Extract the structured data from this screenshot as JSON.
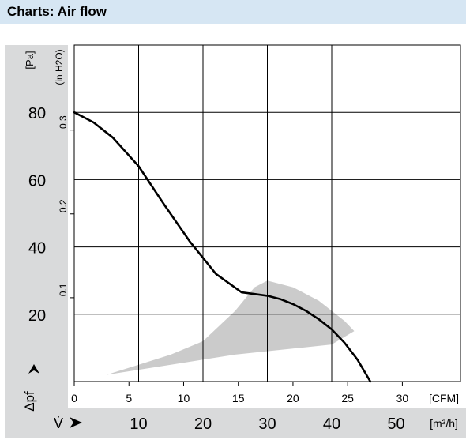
{
  "header": {
    "title": "Charts: Air flow"
  },
  "chart_data": {
    "type": "line",
    "title": "",
    "y_unit_pa": "[Pa]",
    "y_unit_inh2o": "(in H2O)",
    "y_symbol": "Δpf",
    "x_symbol": "V̇",
    "x_unit_cfm": "[CFM]",
    "x_unit_m3h": "[m³/h]",
    "yticks_pa": [
      "20",
      "40",
      "60",
      "80"
    ],
    "yticks_pa_values": [
      20,
      40,
      60,
      80
    ],
    "yticks_inh2o": [
      "0.1",
      "0.2",
      "0.3"
    ],
    "yticks_inh2o_values": [
      0.1,
      0.2,
      0.3
    ],
    "xticks_cfm": [
      "0",
      "5",
      "10",
      "15",
      "20",
      "25",
      "30"
    ],
    "xticks_cfm_values": [
      0,
      5,
      10,
      15,
      20,
      25,
      30
    ],
    "xticks_m3h": [
      "10",
      "20",
      "30",
      "40",
      "50"
    ],
    "xticks_m3h_values": [
      10,
      20,
      30,
      40,
      50
    ],
    "xlim_m3h": [
      0,
      60
    ],
    "ylim_pa": [
      0,
      100
    ],
    "grid": true,
    "series": [
      {
        "color": "#000000",
        "x_m3h": [
          0,
          3,
          6,
          10,
          14,
          18,
          22,
          26,
          28,
          30,
          32,
          34,
          36,
          38,
          40,
          42,
          44,
          46
        ],
        "y_pa": [
          80,
          77,
          72.5,
          64,
          52.5,
          41.5,
          32,
          26.5,
          26,
          25.5,
          24.5,
          23,
          21,
          18.5,
          15.5,
          11.5,
          6.5,
          0
        ]
      }
    ],
    "operating_region": {
      "color": "#cbcbcb",
      "upper_x_m3h": [
        0,
        5,
        10,
        15,
        20,
        25,
        28,
        30,
        34,
        38,
        42,
        43.5
      ],
      "upper_y_pa": [
        0,
        2,
        5,
        8,
        12,
        21,
        28,
        30,
        28,
        24,
        18,
        15
      ],
      "lower_x_m3h": [
        43.5,
        40,
        35,
        30,
        25,
        20,
        15,
        10,
        5,
        0
      ],
      "lower_y_pa": [
        15,
        11,
        10,
        9,
        8,
        6.5,
        5,
        3.5,
        2,
        0
      ]
    }
  }
}
